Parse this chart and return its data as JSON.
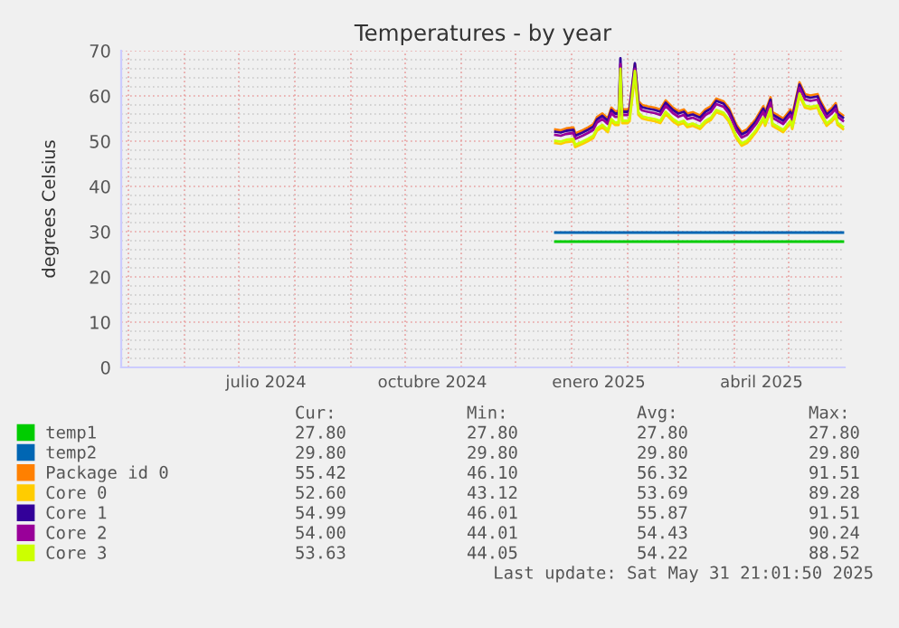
{
  "chart_data": {
    "type": "line",
    "title": "Temperatures - by year",
    "ylabel": "degrees Celsius",
    "xlim": [
      "2024-04-27",
      "2025-06-01"
    ],
    "xticks": [
      {
        "value": "2024-05-01",
        "label": null
      },
      {
        "value": "2024-06-01",
        "label": null
      },
      {
        "value": "2024-07-01",
        "label": null
      },
      {
        "value": "2024-08-01",
        "label": null
      },
      {
        "value": "2024-09-01",
        "label": null
      },
      {
        "value": "2024-10-01",
        "label": null
      },
      {
        "value": "2024-11-01",
        "label": null
      },
      {
        "value": "2024-12-01",
        "label": null
      },
      {
        "value": "2025-01-01",
        "label": null
      },
      {
        "value": "2025-02-01",
        "label": null
      },
      {
        "value": "2025-03-01",
        "label": null
      },
      {
        "value": "2025-04-01",
        "label": null
      },
      {
        "value": "2025-05-01",
        "label": null
      },
      {
        "value": "2024-07-16",
        "label": "julio 2024"
      },
      {
        "value": "2024-10-16",
        "label": "octubre 2024"
      },
      {
        "value": "2025-01-16",
        "label": "enero 2025"
      },
      {
        "value": "2025-04-16",
        "label": "abril 2025"
      }
    ],
    "ylim": [
      0,
      70
    ],
    "yticks": [
      0,
      {
        "value": 2,
        "label": null
      },
      {
        "value": 4,
        "label": null
      },
      {
        "value": 6,
        "label": null
      },
      {
        "value": 8,
        "label": null
      },
      10,
      {
        "value": 12,
        "label": null
      },
      {
        "value": 14,
        "label": null
      },
      {
        "value": 16,
        "label": null
      },
      {
        "value": 18,
        "label": null
      },
      20,
      {
        "value": 22,
        "label": null
      },
      {
        "value": 24,
        "label": null
      },
      {
        "value": 26,
        "label": null
      },
      {
        "value": 28,
        "label": null
      },
      30,
      {
        "value": 32,
        "label": null
      },
      {
        "value": 34,
        "label": null
      },
      {
        "value": 36,
        "label": null
      },
      {
        "value": 38,
        "label": null
      },
      40,
      {
        "value": 42,
        "label": null
      },
      {
        "value": 44,
        "label": null
      },
      {
        "value": 46,
        "label": null
      },
      {
        "value": 48,
        "label": null
      },
      50,
      {
        "value": 52,
        "label": null
      },
      {
        "value": 54,
        "label": null
      },
      {
        "value": 56,
        "label": null
      },
      {
        "value": 58,
        "label": null
      },
      60,
      {
        "value": 62,
        "label": null
      },
      {
        "value": 64,
        "label": null
      },
      {
        "value": 66,
        "label": null
      },
      {
        "value": 68,
        "label": null
      },
      70
    ],
    "grid": true,
    "legend": "bottom",
    "marker": "none",
    "line_style": "solid",
    "x": [
      "2024-12-23",
      "2024-12-26",
      "2024-12-29",
      "2025-01-02",
      "2025-01-03",
      "2025-01-07",
      "2025-01-10",
      "2025-01-13",
      "2025-01-15",
      "2025-01-18",
      "2025-01-21",
      "2025-01-23",
      "2025-01-25",
      "2025-01-27",
      "2025-01-28",
      "2025-01-29",
      "2025-02-01",
      "2025-02-02",
      "2025-02-05",
      "2025-02-07",
      "2025-02-09",
      "2025-02-12",
      "2025-02-16",
      "2025-02-19",
      "2025-02-22",
      "2025-02-26",
      "2025-03-01",
      "2025-03-04",
      "2025-03-06",
      "2025-03-09",
      "2025-03-13",
      "2025-03-16",
      "2025-03-19",
      "2025-03-22",
      "2025-03-26",
      "2025-03-29",
      "2025-04-02",
      "2025-04-05",
      "2025-04-08",
      "2025-04-11",
      "2025-04-13",
      "2025-04-17",
      "2025-04-18",
      "2025-04-21",
      "2025-04-22",
      "2025-04-25",
      "2025-04-28",
      "2025-05-02",
      "2025-05-03",
      "2025-05-07",
      "2025-05-10",
      "2025-05-13",
      "2025-05-17",
      "2025-05-18",
      "2025-05-22",
      "2025-05-25",
      "2025-05-27",
      "2025-05-28",
      "2025-05-31"
    ],
    "series": [
      {
        "name": "temp1",
        "color": "#00cc00",
        "x": [
          "2024-12-23",
          "2025-05-31"
        ],
        "values": [
          27.8,
          27.8
        ]
      },
      {
        "name": "temp2",
        "color": "#0066b3",
        "x": [
          "2024-12-23",
          "2025-05-31"
        ],
        "values": [
          29.8,
          29.8
        ]
      },
      {
        "name": "Package id 0",
        "color": "#ff8000",
        "values": [
          52.6,
          52.4,
          52.8,
          53.0,
          51.7,
          52.4,
          53.0,
          53.7,
          55.3,
          56.1,
          55.0,
          57.4,
          56.6,
          56.6,
          null,
          57.0,
          57.0,
          57.4,
          67.0,
          58.8,
          58.0,
          57.7,
          57.4,
          57.0,
          59.0,
          57.4,
          56.6,
          57.0,
          56.1,
          56.4,
          55.7,
          57.0,
          57.7,
          59.4,
          58.8,
          57.3,
          53.7,
          52.0,
          52.6,
          54.0,
          55.0,
          57.7,
          56.4,
          59.7,
          56.4,
          55.7,
          55.0,
          57.0,
          55.7,
          63.0,
          60.4,
          60.1,
          60.4,
          59.3,
          56.4,
          57.4,
          58.4,
          56.6,
          55.7
        ]
      },
      {
        "name": "Core 0",
        "color": "#ffcc00",
        "values": [
          49.6,
          49.4,
          49.8,
          50.0,
          48.7,
          49.4,
          50.0,
          50.7,
          52.3,
          53.1,
          52.0,
          54.4,
          53.6,
          53.6,
          64.0,
          54.0,
          54.0,
          54.4,
          64.5,
          55.8,
          55.0,
          54.7,
          54.4,
          54.0,
          56.0,
          54.4,
          53.6,
          54.0,
          53.1,
          53.4,
          52.7,
          54.0,
          54.7,
          56.4,
          55.8,
          54.3,
          50.7,
          49.0,
          49.6,
          51.0,
          52.0,
          54.7,
          53.4,
          56.7,
          53.4,
          52.7,
          52.0,
          54.0,
          52.7,
          60.0,
          57.4,
          57.1,
          57.4,
          56.3,
          53.4,
          54.4,
          55.4,
          53.6,
          52.7
        ]
      },
      {
        "name": "Core 1",
        "color": "#330099",
        "values": [
          52.1,
          51.9,
          52.3,
          52.5,
          51.2,
          51.9,
          52.5,
          53.2,
          54.8,
          55.6,
          54.5,
          56.9,
          56.1,
          56.1,
          68.3,
          56.5,
          56.5,
          56.9,
          67.2,
          58.3,
          57.5,
          57.2,
          56.9,
          56.5,
          58.5,
          56.9,
          56.1,
          56.5,
          55.6,
          55.9,
          55.2,
          56.5,
          57.2,
          58.9,
          58.3,
          56.8,
          53.2,
          51.5,
          52.1,
          53.5,
          54.5,
          57.2,
          55.9,
          59.2,
          55.9,
          55.2,
          54.5,
          56.5,
          55.2,
          62.5,
          59.9,
          59.6,
          59.9,
          58.8,
          55.9,
          56.9,
          57.9,
          56.1,
          55.2
        ]
      },
      {
        "name": "Core 2",
        "color": "#990099",
        "values": [
          51.4,
          51.2,
          51.6,
          51.8,
          50.5,
          51.2,
          51.8,
          52.5,
          54.1,
          54.9,
          53.8,
          56.2,
          55.4,
          55.4,
          67.0,
          55.8,
          55.8,
          56.2,
          66.0,
          57.6,
          56.8,
          56.5,
          56.2,
          55.8,
          57.8,
          56.2,
          55.4,
          55.8,
          54.9,
          55.2,
          54.5,
          55.8,
          56.5,
          58.2,
          57.6,
          56.1,
          52.5,
          50.8,
          51.4,
          52.8,
          53.8,
          56.5,
          55.2,
          58.5,
          55.2,
          54.5,
          53.8,
          55.8,
          54.5,
          61.8,
          59.2,
          58.9,
          59.2,
          58.1,
          55.2,
          56.2,
          57.2,
          55.4,
          54.5
        ]
      },
      {
        "name": "Core 3",
        "color": "#ccff00",
        "values": [
          50.1,
          49.9,
          50.3,
          50.5,
          49.2,
          49.9,
          50.5,
          51.2,
          52.8,
          53.6,
          52.5,
          54.9,
          54.1,
          54.1,
          66.0,
          54.5,
          54.5,
          54.9,
          65.5,
          56.3,
          55.5,
          55.2,
          54.9,
          54.5,
          56.5,
          54.9,
          54.1,
          54.5,
          53.6,
          53.9,
          53.2,
          54.5,
          55.2,
          56.9,
          56.3,
          54.8,
          51.2,
          49.5,
          50.1,
          51.5,
          52.5,
          55.2,
          53.9,
          57.2,
          53.9,
          53.2,
          52.5,
          54.5,
          53.2,
          60.5,
          57.9,
          57.6,
          57.9,
          56.8,
          53.9,
          54.9,
          55.9,
          54.1,
          53.2
        ]
      }
    ],
    "annotations": [
      "Cur:",
      "Min:",
      "Avg:",
      "Max:",
      "27.80",
      "27.80",
      "27.80",
      "27.80",
      "29.80",
      "29.80",
      "29.80",
      "29.80",
      "55.42",
      "46.10",
      "56.32",
      "91.51",
      "52.60",
      "43.12",
      "53.69",
      "89.28",
      "54.99",
      "46.01",
      "55.87",
      "91.51",
      "54.00",
      "44.01",
      "54.43",
      "90.24",
      "53.63",
      "44.05",
      "54.22",
      "88.52",
      "Last update: Sat May 31 21:01:50 2025"
    ]
  }
}
